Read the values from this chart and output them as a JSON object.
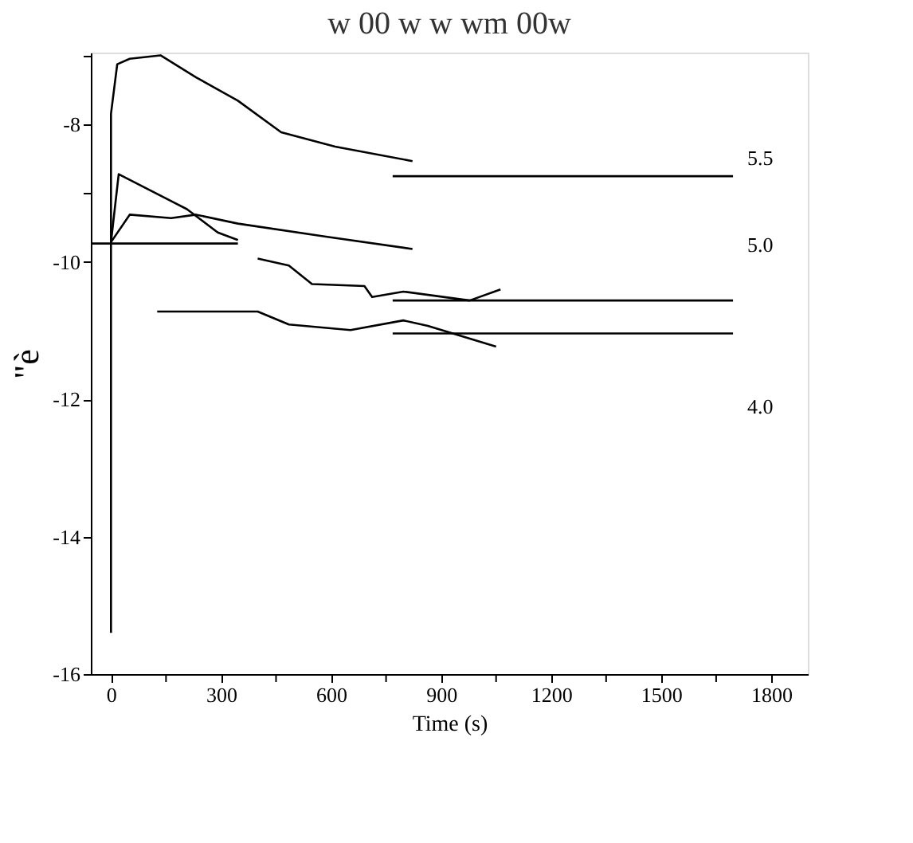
{
  "chart_data": {
    "type": "line",
    "title": "w 00 w w wm 00w",
    "xlabel": "Time (s)",
    "ylabel": "\"è",
    "xlim": [
      -55,
      1900
    ],
    "ylim": [
      -16,
      -6.95
    ],
    "xticks": [
      0,
      {
        "value": 150,
        "label": null
      },
      300,
      {
        "value": 450,
        "label": null
      },
      600,
      {
        "value": 750,
        "label": null
      },
      900,
      {
        "value": 1050,
        "label": null
      },
      1200,
      {
        "value": 1350,
        "label": null
      },
      1500,
      {
        "value": 1650,
        "label": null
      },
      1800
    ],
    "yticks": [
      -16,
      -14,
      -12,
      -10,
      -8,
      {
        "value": -9,
        "label": null
      },
      {
        "value": -7,
        "label": null
      }
    ],
    "grid": false,
    "marker": "none",
    "line_style": "solid",
    "series": [
      {
        "color": "#000000",
        "x": [
          0,
          0,
          17,
          51,
          135,
          232,
          346,
          464,
          611,
          822
        ],
        "values": [
          -15.4,
          -7.84,
          -7.12,
          -7.04,
          -6.99,
          -7.31,
          -7.65,
          -8.11,
          -8.32,
          -8.53
        ]
      },
      {
        "color": "#000000",
        "x": [
          0,
          21,
          207,
          291,
          346
        ],
        "values": [
          -9.71,
          -8.72,
          -9.23,
          -9.57,
          -9.68
        ]
      },
      {
        "color": "#000000",
        "x": [
          0,
          51,
          164,
          232,
          346,
          586,
          822
        ],
        "values": [
          -9.71,
          -9.31,
          -9.36,
          -9.31,
          -9.44,
          -9.63,
          -9.81
        ]
      },
      {
        "color": "#000000",
        "x": [
          400,
          485,
          548,
          691,
          712,
          797,
          978,
          1062
        ],
        "values": [
          -9.95,
          -10.05,
          -10.32,
          -10.35,
          -10.51,
          -10.43,
          -10.56,
          -10.4
        ]
      },
      {
        "color": "#000000",
        "x": [
          126,
          400,
          485,
          653,
          797,
          864,
          1050
        ],
        "values": [
          -10.72,
          -10.72,
          -10.91,
          -10.99,
          -10.85,
          -10.93,
          -11.23
        ]
      },
      {
        "color": "#000000",
        "x": [
          -55,
          346
        ],
        "values": [
          -9.73,
          -9.73
        ]
      },
      {
        "color": "#000000",
        "x": [
          768,
          1696
        ],
        "values": [
          -8.75,
          -8.75
        ]
      },
      {
        "color": "#000000",
        "x": [
          768,
          1696
        ],
        "values": [
          -10.56,
          -10.56
        ]
      },
      {
        "color": "#000000",
        "x": [
          768,
          1696
        ],
        "values": [
          -11.04,
          -11.04
        ]
      }
    ],
    "annotations": [
      "5.5",
      "5.0",
      "4.0"
    ]
  }
}
